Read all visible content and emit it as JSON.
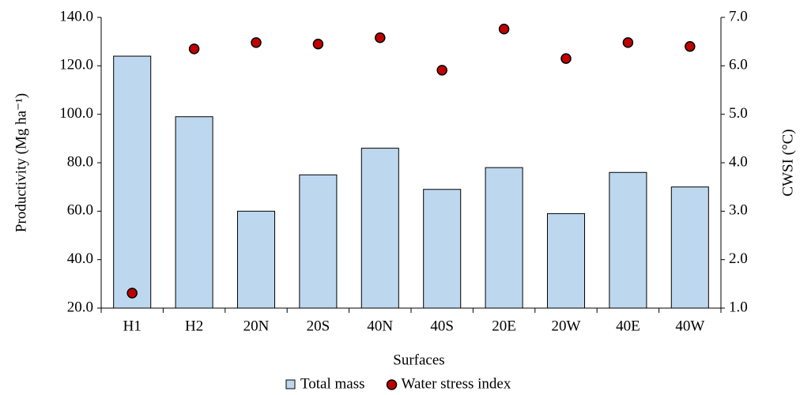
{
  "chart_data": {
    "type": "bar",
    "x_label": "Surfaces",
    "y_label": "Productivity (Mg ha⁻¹)",
    "y2_label": "CWSI (°C)",
    "categories": [
      "H1",
      "H2",
      "20N",
      "20S",
      "40N",
      "40S",
      "20E",
      "20W",
      "40E",
      "40W"
    ],
    "series": [
      {
        "name": "Total mass",
        "type": "bar",
        "color": "#bdd7ee",
        "values": [
          124,
          99,
          60,
          75,
          86,
          69,
          78,
          59,
          76,
          70
        ]
      },
      {
        "name": "Water stress index",
        "type": "scatter",
        "axis": "y2",
        "color": "#c00000",
        "values": [
          1.31,
          6.35,
          6.48,
          6.45,
          6.58,
          5.91,
          6.76,
          6.15,
          6.48,
          6.4
        ]
      }
    ],
    "ylim": [
      20,
      140
    ],
    "yticks": [
      {
        "value": 20,
        "label": "20.0"
      },
      {
        "value": 40,
        "label": "40.0"
      },
      {
        "value": 60,
        "label": "60.0"
      },
      {
        "value": 80,
        "label": "80.0"
      },
      {
        "value": 100,
        "label": "100.0"
      },
      {
        "value": 120,
        "label": "120.0"
      },
      {
        "value": 140,
        "label": "140.0"
      }
    ],
    "y2lim": [
      1,
      7
    ],
    "y2ticks": [
      {
        "value": 1,
        "label": "1.0"
      },
      {
        "value": 2,
        "label": "2.0"
      },
      {
        "value": 3,
        "label": "3.0"
      },
      {
        "value": 4,
        "label": "4.0"
      },
      {
        "value": 5,
        "label": "5.0"
      },
      {
        "value": 6,
        "label": "6.0"
      },
      {
        "value": 7,
        "label": "7.0"
      }
    ],
    "grid": false,
    "legend": "bottom"
  }
}
